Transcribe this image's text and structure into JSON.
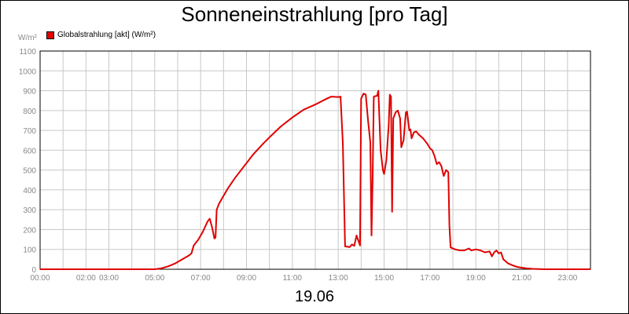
{
  "chart_data": {
    "type": "line",
    "title": "Sonneneinstrahlung [pro Tag]",
    "date_label": "19.06",
    "ylabel": "W/m²",
    "ylim": [
      0,
      1100
    ],
    "xlim": [
      0,
      24
    ],
    "grid": true,
    "legend_position": "top-left",
    "series_color": "#e00000",
    "yticks": [
      0,
      100,
      200,
      300,
      400,
      500,
      600,
      700,
      800,
      900,
      1000,
      1100
    ],
    "xticks": [
      {
        "x": 0,
        "label": "00:00"
      },
      {
        "x": 2,
        "label": "02:00"
      },
      {
        "x": 3,
        "label": "03:00"
      },
      {
        "x": 5,
        "label": "05:00"
      },
      {
        "x": 7,
        "label": "07:00"
      },
      {
        "x": 9,
        "label": "09:00"
      },
      {
        "x": 11,
        "label": "11:00"
      },
      {
        "x": 13,
        "label": "13:00"
      },
      {
        "x": 15,
        "label": "15:00"
      },
      {
        "x": 17,
        "label": "17:00"
      },
      {
        "x": 19,
        "label": "19:00"
      },
      {
        "x": 21,
        "label": "21:00"
      },
      {
        "x": 23,
        "label": "23:00"
      }
    ],
    "series": [
      {
        "name": "Globalstrahlung [akt] (W/m²)",
        "points": [
          [
            0,
            0
          ],
          [
            5.0,
            0
          ],
          [
            5.3,
            5
          ],
          [
            5.6,
            15
          ],
          [
            5.9,
            30
          ],
          [
            6.2,
            50
          ],
          [
            6.5,
            70
          ],
          [
            6.6,
            80
          ],
          [
            6.7,
            120
          ],
          [
            6.9,
            150
          ],
          [
            7.1,
            190
          ],
          [
            7.3,
            240
          ],
          [
            7.4,
            255
          ],
          [
            7.5,
            210
          ],
          [
            7.6,
            155
          ],
          [
            7.65,
            160
          ],
          [
            7.7,
            300
          ],
          [
            7.8,
            330
          ],
          [
            8.0,
            370
          ],
          [
            8.2,
            410
          ],
          [
            8.5,
            460
          ],
          [
            9.0,
            535
          ],
          [
            9.3,
            580
          ],
          [
            9.7,
            630
          ],
          [
            10.0,
            665
          ],
          [
            10.5,
            720
          ],
          [
            11.0,
            765
          ],
          [
            11.5,
            805
          ],
          [
            12.0,
            830
          ],
          [
            12.5,
            860
          ],
          [
            12.7,
            870
          ],
          [
            13.0,
            868
          ],
          [
            13.1,
            870
          ],
          [
            13.2,
            640
          ],
          [
            13.3,
            115
          ],
          [
            13.5,
            112
          ],
          [
            13.6,
            125
          ],
          [
            13.7,
            118
          ],
          [
            13.8,
            170
          ],
          [
            13.95,
            120
          ],
          [
            14.0,
            860
          ],
          [
            14.1,
            885
          ],
          [
            14.2,
            880
          ],
          [
            14.3,
            750
          ],
          [
            14.4,
            640
          ],
          [
            14.45,
            170
          ],
          [
            14.5,
            450
          ],
          [
            14.55,
            870
          ],
          [
            14.7,
            875
          ],
          [
            14.75,
            900
          ],
          [
            14.85,
            600
          ],
          [
            14.95,
            500
          ],
          [
            15.0,
            480
          ],
          [
            15.1,
            550
          ],
          [
            15.2,
            720
          ],
          [
            15.25,
            880
          ],
          [
            15.3,
            870
          ],
          [
            15.35,
            290
          ],
          [
            15.4,
            760
          ],
          [
            15.5,
            790
          ],
          [
            15.6,
            800
          ],
          [
            15.7,
            760
          ],
          [
            15.75,
            615
          ],
          [
            15.85,
            650
          ],
          [
            15.95,
            790
          ],
          [
            16.0,
            795
          ],
          [
            16.05,
            750
          ],
          [
            16.1,
            700
          ],
          [
            16.15,
            705
          ],
          [
            16.2,
            660
          ],
          [
            16.3,
            690
          ],
          [
            16.4,
            695
          ],
          [
            16.5,
            680
          ],
          [
            16.7,
            660
          ],
          [
            16.9,
            630
          ],
          [
            17.0,
            610
          ],
          [
            17.1,
            600
          ],
          [
            17.2,
            570
          ],
          [
            17.3,
            530
          ],
          [
            17.4,
            540
          ],
          [
            17.5,
            520
          ],
          [
            17.6,
            470
          ],
          [
            17.7,
            500
          ],
          [
            17.8,
            490
          ],
          [
            17.85,
            220
          ],
          [
            17.9,
            110
          ],
          [
            18.1,
            100
          ],
          [
            18.3,
            95
          ],
          [
            18.5,
            95
          ],
          [
            18.7,
            105
          ],
          [
            18.8,
            95
          ],
          [
            19.0,
            100
          ],
          [
            19.2,
            95
          ],
          [
            19.4,
            85
          ],
          [
            19.6,
            90
          ],
          [
            19.7,
            65
          ],
          [
            19.8,
            85
          ],
          [
            19.9,
            95
          ],
          [
            20.0,
            80
          ],
          [
            20.1,
            85
          ],
          [
            20.2,
            50
          ],
          [
            20.4,
            30
          ],
          [
            20.6,
            20
          ],
          [
            20.8,
            12
          ],
          [
            21.0,
            8
          ],
          [
            21.2,
            5
          ],
          [
            21.5,
            2
          ],
          [
            22.0,
            0
          ],
          [
            24,
            0
          ]
        ]
      }
    ]
  }
}
